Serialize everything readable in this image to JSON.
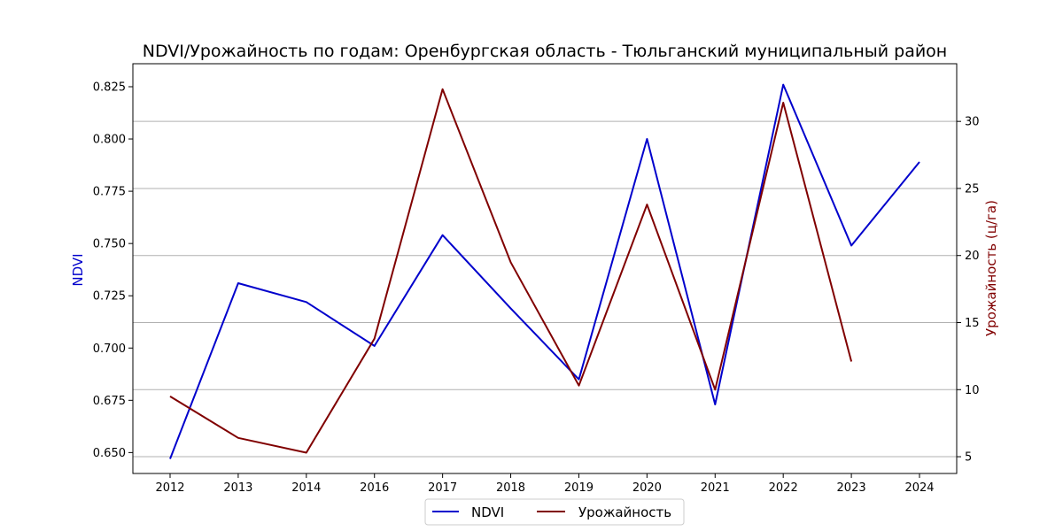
{
  "chart_data": {
    "type": "line",
    "title": "NDVI/Урожайность по годам: Оренбургская область - Тюльганский муниципальный район",
    "categories": [
      "2012",
      "2013",
      "2014",
      "2016",
      "2017",
      "2018",
      "2019",
      "2020",
      "2021",
      "2022",
      "2023",
      "2024"
    ],
    "left_axis": {
      "label": "NDVI",
      "color": "#0000cc",
      "ylim": [
        0.64,
        0.836
      ],
      "ticks": [
        "0.650",
        "0.675",
        "0.700",
        "0.725",
        "0.750",
        "0.775",
        "0.800",
        "0.825"
      ]
    },
    "right_axis": {
      "label": "Урожайность (ц/га)",
      "color": "#800000",
      "ylim": [
        3.75,
        34.3
      ],
      "ticks": [
        "5",
        "10",
        "15",
        "20",
        "25",
        "30"
      ],
      "grid": true
    },
    "series": [
      {
        "name": "NDVI",
        "axis": "left",
        "color": "#0000cc",
        "values": [
          0.647,
          0.731,
          0.722,
          0.701,
          0.754,
          0.719,
          0.685,
          0.8,
          0.673,
          0.826,
          0.749,
          0.789
        ]
      },
      {
        "name": "Урожайность",
        "axis": "right",
        "color": "#800000",
        "values": [
          9.5,
          6.4,
          5.3,
          13.8,
          32.4,
          19.5,
          10.3,
          23.8,
          10.0,
          31.4,
          12.1,
          null
        ]
      }
    ],
    "legend": {
      "position": "bottom-center",
      "entries": [
        "NDVI",
        "Урожайность"
      ]
    }
  }
}
